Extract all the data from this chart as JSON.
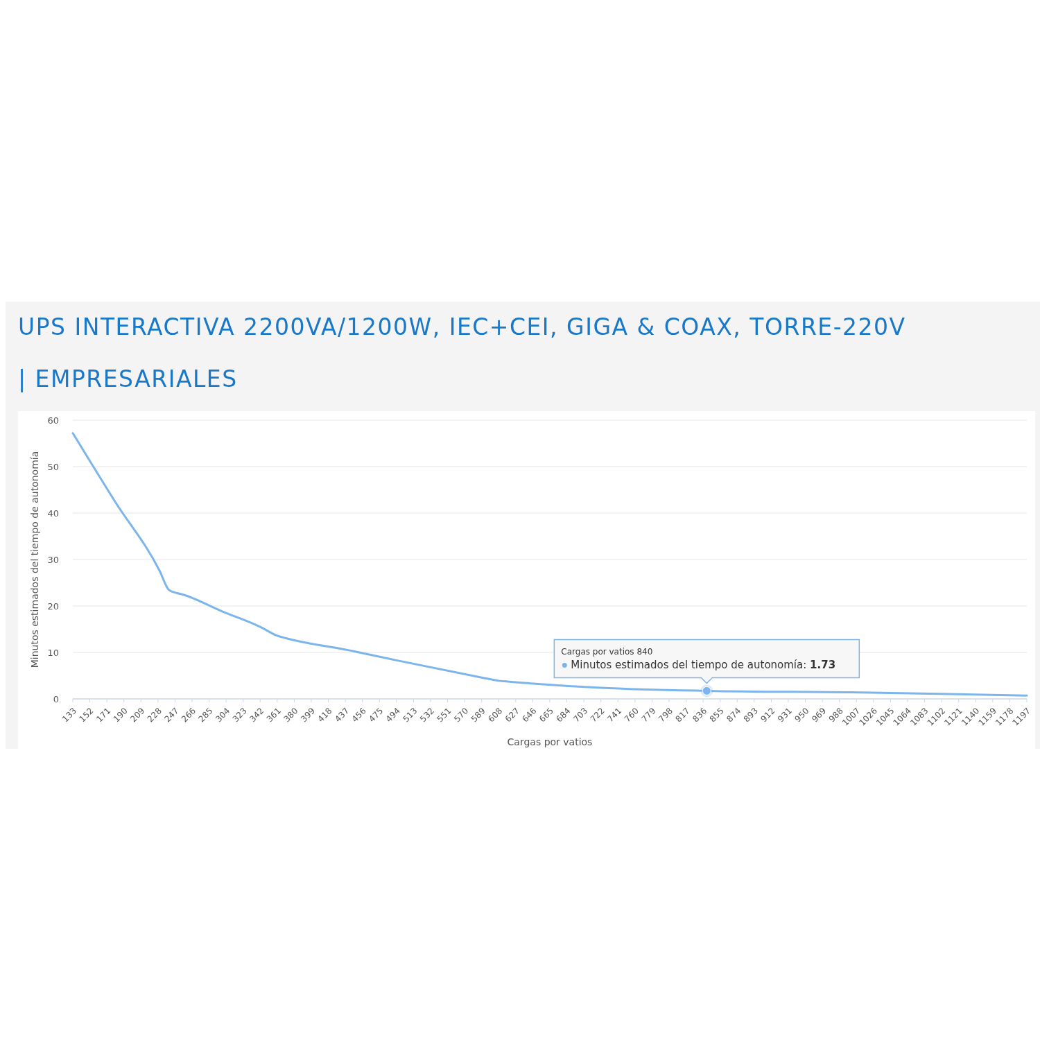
{
  "chart_data": {
    "type": "line",
    "title": "UPS INTERACTIVA 2200VA/1200W, IEC+CEI, GIGA & COAX, TORRE-220V | EMPRESARIALES",
    "xlabel": "Cargas por vatios",
    "ylabel": "Minutos estimados del tiempo de autonomía",
    "x": [
      133,
      180,
      230,
      240,
      247,
      255,
      300,
      342,
      361,
      370,
      440,
      494,
      589,
      608,
      620,
      722,
      840,
      1000,
      1100,
      1197
    ],
    "series": [
      {
        "color": "#7cb5ec",
        "values": [
          57.2,
          42.5,
          27.5,
          23.5,
          22.9,
          22.5,
          18.8,
          15.5,
          13.6,
          13.1,
          10.5,
          8.3,
          4.6,
          3.9,
          3.7,
          2.4,
          1.73,
          1.4,
          1.1,
          0.7
        ]
      }
    ],
    "xlim": [
      133,
      1197
    ],
    "xticks": [
      133,
      152,
      171,
      190,
      209,
      228,
      247,
      266,
      285,
      304,
      323,
      342,
      361,
      380,
      399,
      418,
      437,
      456,
      475,
      494,
      513,
      532,
      551,
      570,
      589,
      608,
      627,
      646,
      665,
      684,
      703,
      722,
      741,
      760,
      779,
      798,
      817,
      836,
      855,
      874,
      893,
      912,
      931,
      950,
      969,
      988,
      1007,
      1026,
      1045,
      1064,
      1083,
      1102,
      1121,
      1140,
      1159,
      1178,
      1197
    ],
    "ylim": [
      0,
      60
    ],
    "yticks": [
      0,
      10,
      20,
      30,
      40,
      50,
      60
    ],
    "grid": "y",
    "marker": "none",
    "line_style": "solid",
    "annotations": [
      {
        "text": "Cargas por vatios 840\nMinutos estimados del tiempo de autonomía: 1.73",
        "x": 840,
        "y": 1.73
      }
    ]
  }
}
